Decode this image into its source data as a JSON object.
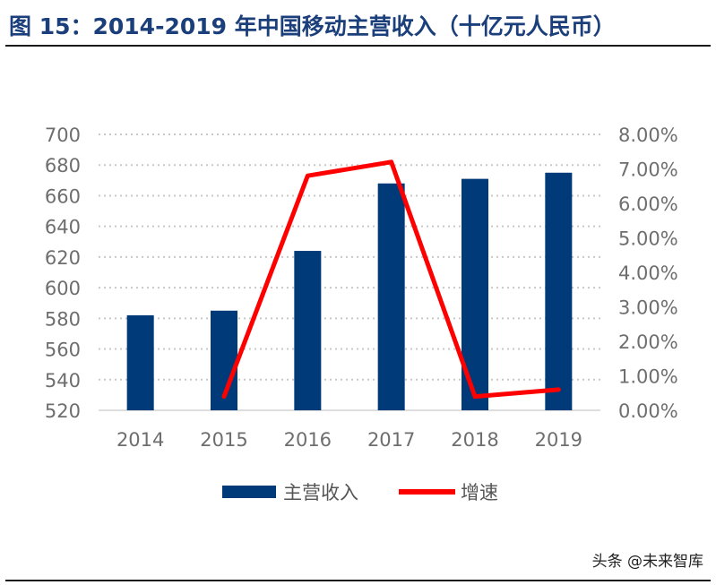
{
  "figure": {
    "title": "图 15：2014-2019 年中国移动主营收入（十亿元人民币）",
    "watermark": "头条 @未来智库"
  },
  "colors": {
    "bar": "#003a78",
    "line": "#ff0000",
    "grid": "#c8c8c8",
    "title": "#1b3f7a"
  },
  "chart_data": {
    "type": "bar",
    "categories": [
      "2014",
      "2015",
      "2016",
      "2017",
      "2018",
      "2019"
    ],
    "series": [
      {
        "name": "主营收入",
        "type": "bar",
        "axis": "left",
        "values": [
          582,
          585,
          624,
          668,
          671,
          675
        ]
      },
      {
        "name": "增速",
        "type": "line",
        "axis": "right",
        "values": [
          null,
          0.004,
          0.068,
          0.072,
          0.004,
          0.006
        ]
      }
    ],
    "y_left": {
      "min": 520,
      "max": 700,
      "step": 20,
      "ticks": [
        "520",
        "540",
        "560",
        "580",
        "600",
        "620",
        "640",
        "660",
        "680",
        "700"
      ]
    },
    "y_right": {
      "min": 0,
      "max": 0.08,
      "step": 0.01,
      "ticks": [
        "0.00%",
        "1.00%",
        "2.00%",
        "3.00%",
        "4.00%",
        "5.00%",
        "6.00%",
        "7.00%",
        "8.00%"
      ]
    },
    "grid": true,
    "legend_position": "bottom"
  }
}
